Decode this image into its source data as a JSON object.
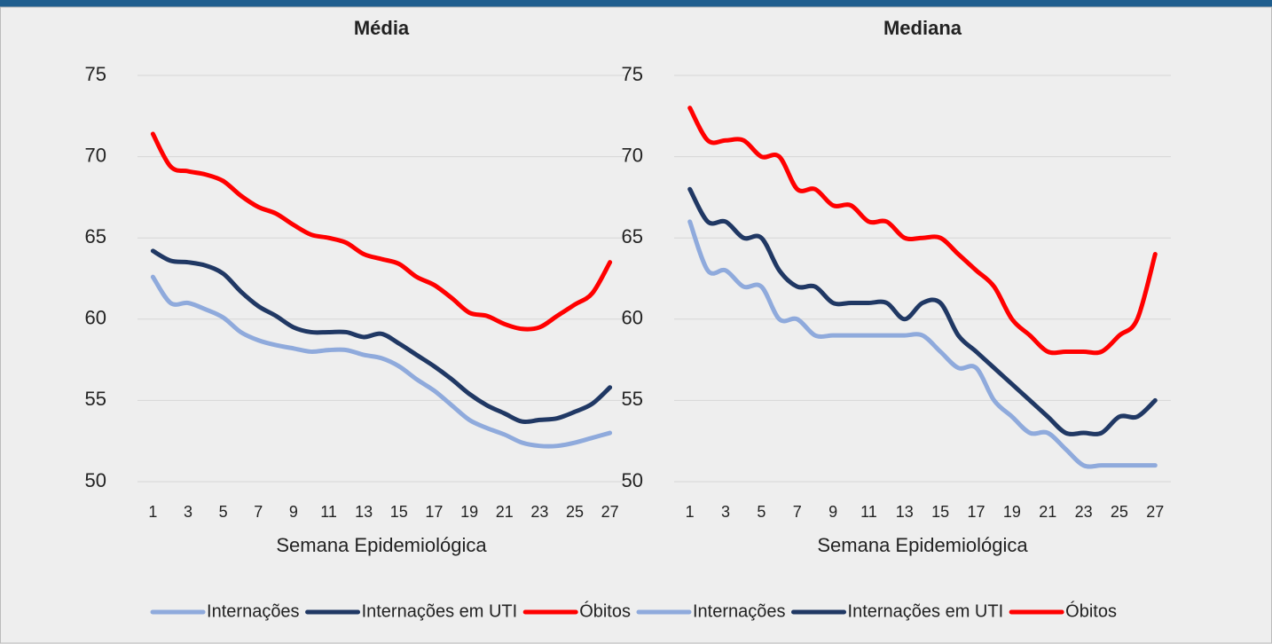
{
  "chart_data": [
    {
      "type": "line",
      "title": "Média",
      "xlabel": "Semana Epidemiológica",
      "categories": [
        "1",
        null,
        "3",
        null,
        "5",
        null,
        "7",
        null,
        "9",
        null,
        "11",
        null,
        "13",
        null,
        "15",
        null,
        "17",
        null,
        "19",
        null,
        "21",
        null,
        "23",
        null,
        "25",
        null,
        "27"
      ],
      "ylim": [
        50,
        75
      ],
      "yticks": [
        50,
        55,
        60,
        65,
        70,
        75
      ],
      "grid": true,
      "series": [
        {
          "name": "Internações",
          "color": "#8faadc",
          "values": [
            62.6,
            61.0,
            61.0,
            60.6,
            60.1,
            59.2,
            58.7,
            58.4,
            58.2,
            58.0,
            58.1,
            58.1,
            57.8,
            57.6,
            57.1,
            56.3,
            55.6,
            54.7,
            53.8,
            53.3,
            52.9,
            52.4,
            52.2,
            52.2,
            52.4,
            52.7,
            53.0
          ]
        },
        {
          "name": "Internações em UTI",
          "color": "#203864",
          "values": [
            64.2,
            63.6,
            63.5,
            63.3,
            62.8,
            61.7,
            60.8,
            60.2,
            59.5,
            59.2,
            59.2,
            59.2,
            58.9,
            59.1,
            58.5,
            57.8,
            57.1,
            56.3,
            55.4,
            54.7,
            54.2,
            53.7,
            53.8,
            53.9,
            54.3,
            54.8,
            55.8
          ]
        },
        {
          "name": "Óbitos",
          "color": "#ff0000",
          "values": [
            71.4,
            69.4,
            69.1,
            68.9,
            68.5,
            67.6,
            66.9,
            66.5,
            65.8,
            65.2,
            65.0,
            64.7,
            64.0,
            63.7,
            63.4,
            62.6,
            62.1,
            61.3,
            60.4,
            60.2,
            59.7,
            59.4,
            59.5,
            60.2,
            60.9,
            61.6,
            63.5
          ]
        }
      ]
    },
    {
      "type": "line",
      "title": "Mediana",
      "xlabel": "Semana Epidemiológica",
      "categories": [
        "1",
        null,
        "3",
        null,
        "5",
        null,
        "7",
        null,
        "9",
        null,
        "11",
        null,
        "13",
        null,
        "15",
        null,
        "17",
        null,
        "19",
        null,
        "21",
        null,
        "23",
        null,
        "25",
        null,
        "27"
      ],
      "ylim": [
        50,
        75
      ],
      "yticks": [
        50,
        55,
        60,
        65,
        70,
        75
      ],
      "grid": true,
      "series": [
        {
          "name": "Internações",
          "color": "#8faadc",
          "values": [
            66,
            63,
            63,
            62,
            62,
            60,
            60,
            59,
            59,
            59,
            59,
            59,
            59,
            59,
            58,
            57,
            57,
            55,
            54,
            53,
            53,
            52,
            51,
            51,
            51,
            51,
            51
          ]
        },
        {
          "name": "Internações em UTI",
          "color": "#203864",
          "values": [
            68,
            66,
            66,
            65,
            65,
            63,
            62,
            62,
            61,
            61,
            61,
            61,
            60,
            61,
            61,
            59,
            58,
            57,
            56,
            55,
            54,
            53,
            53,
            53,
            54,
            54,
            55
          ]
        },
        {
          "name": "Óbitos",
          "color": "#ff0000",
          "values": [
            73,
            71,
            71,
            71,
            70,
            70,
            68,
            68,
            67,
            67,
            66,
            66,
            65,
            65,
            65,
            64,
            63,
            62,
            60,
            59,
            58,
            58,
            58,
            58,
            59,
            60,
            64
          ]
        }
      ]
    }
  ]
}
